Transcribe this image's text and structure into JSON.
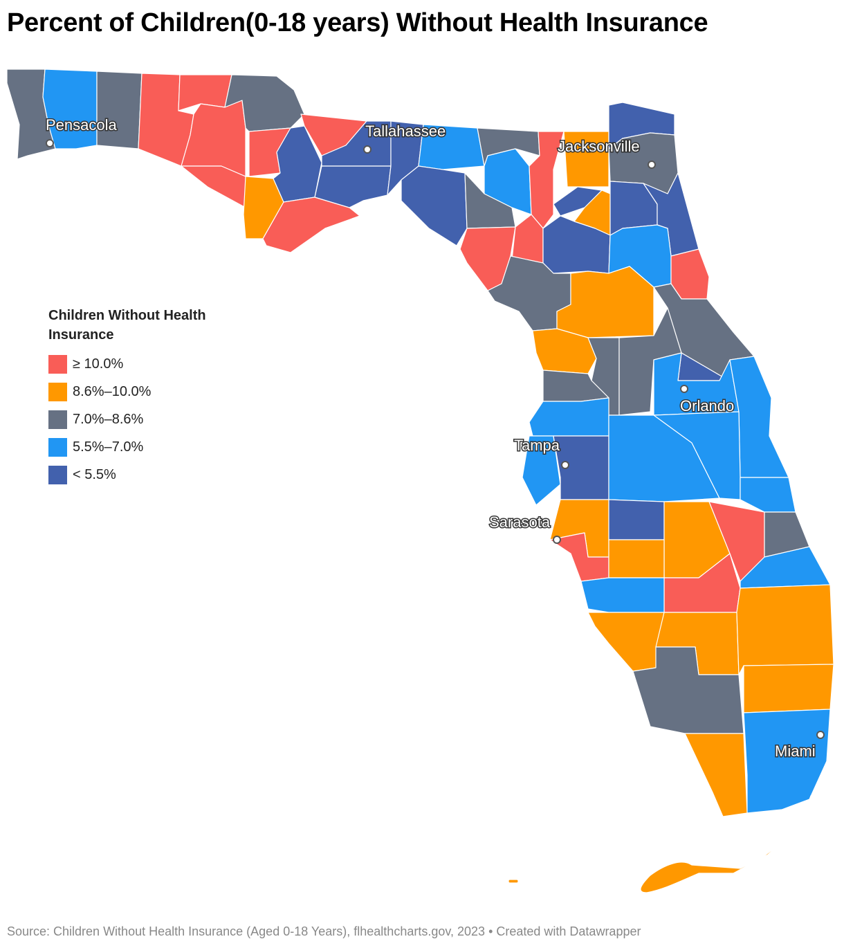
{
  "title": "Percent of Children(0-18 years) Without Health Insurance",
  "legend": {
    "title": "Children Without Health Insurance",
    "items": [
      {
        "label": "≥ 10.0%",
        "color": "#f95d57"
      },
      {
        "label": "8.6%–10.0%",
        "color": "#ff9800"
      },
      {
        "label": "7.0%–8.6%",
        "color": "#667183"
      },
      {
        "label": "5.5%–7.0%",
        "color": "#2196f3"
      },
      {
        "label": "< 5.5%",
        "color": "#4261ad"
      }
    ]
  },
  "cities": [
    "Pensacola",
    "Tallahassee",
    "Jacksonville",
    "Orlando",
    "Tampa",
    "Sarasota",
    "Miami"
  ],
  "source": "Source: Children Without Health Insurance (Aged 0-18 Years), flhealthcharts.gov, 2023 • Created with Datawrapper"
}
